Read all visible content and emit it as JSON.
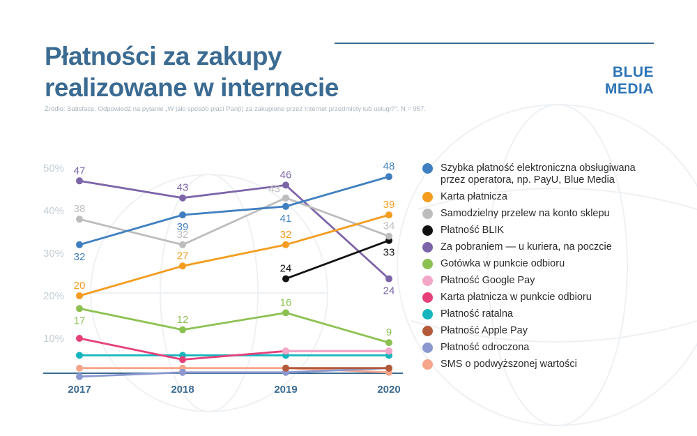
{
  "header": {
    "title_line1": "Płatności za zakupy",
    "title_line2": "realizowane w internecie",
    "brand_line1": "BLUE",
    "brand_line2": "MEDIA",
    "source": "Źródło: Satisface. Odpowiedź na pytanie „W jaki sposób płaci Pan(i) za zakupione przez Internet przedmioty lub usługi?\". N = 957."
  },
  "colors": {
    "title": "#3b6b92",
    "brand": "#2d74b6",
    "axis": "#3b6b92",
    "tick_text": "#c3cdd6"
  },
  "chart_data": {
    "type": "line",
    "x": [
      "2017",
      "2018",
      "2019",
      "2020"
    ],
    "yticks": [
      "10%",
      "20%",
      "30%",
      "40%",
      "50%"
    ],
    "ylim": [
      0,
      50
    ],
    "grid": false,
    "legend_position": "right",
    "series": [
      {
        "name": "Szybka płatność elektroniczna obsługiwana przez operatora, np. PayU, Blue Media",
        "color": "#3f7fc0",
        "values": [
          32,
          39,
          41,
          48
        ],
        "labels": [
          "32",
          "39",
          "41",
          "48"
        ],
        "label_pos": [
          "below",
          "below",
          "below",
          "above"
        ]
      },
      {
        "name": "Karta płatnicza",
        "color": "#f39c1f",
        "values": [
          20,
          27,
          32,
          39
        ],
        "labels": [
          "20",
          "27",
          "32",
          "39"
        ],
        "label_pos": [
          "above",
          "above",
          "above",
          "above"
        ]
      },
      {
        "name": "Samodzielny przelew na konto sklepu",
        "color": "#bdbdbd",
        "values": [
          38,
          32,
          43,
          34
        ],
        "labels": [
          "38",
          "32",
          "43",
          "34"
        ],
        "label_pos": [
          "above",
          "above",
          "left",
          "above"
        ]
      },
      {
        "name": "Płatność BLIK",
        "color": "#111111",
        "values": [
          null,
          null,
          24,
          33
        ],
        "labels": [
          null,
          null,
          "24",
          "33"
        ],
        "label_pos": [
          null,
          null,
          "above",
          "below"
        ]
      },
      {
        "name": "Za pobraniem — u kuriera, na poczcie",
        "color": "#7c64a9",
        "values": [
          47,
          43,
          46,
          24
        ],
        "labels": [
          "47",
          "43",
          "46",
          "24"
        ],
        "label_pos": [
          "above",
          "above",
          "above",
          "below"
        ]
      },
      {
        "name": "Gotówka w punkcie odbioru",
        "color": "#8cc152",
        "values": [
          17,
          12,
          16,
          9
        ],
        "labels": [
          "17",
          "12",
          "16",
          "9"
        ],
        "label_pos": [
          "below",
          "above",
          "above",
          "above"
        ]
      },
      {
        "name": "Płatność Google Pay",
        "color": "#f3a6c8",
        "values": [
          null,
          null,
          7,
          7
        ],
        "labels": [
          null,
          null,
          null,
          null
        ],
        "label_pos": [
          null,
          null,
          null,
          null
        ]
      },
      {
        "name": "Karta płatnicza w punkcie odbioru",
        "color": "#e5407a",
        "values": [
          10,
          5,
          7,
          7
        ],
        "labels": [
          null,
          null,
          null,
          null
        ],
        "label_pos": [
          null,
          null,
          null,
          null
        ]
      },
      {
        "name": "Płatność ratalna",
        "color": "#15b5bd",
        "values": [
          6,
          6,
          6,
          6
        ],
        "labels": [
          null,
          null,
          null,
          null
        ],
        "label_pos": [
          null,
          null,
          null,
          null
        ]
      },
      {
        "name": "Płatność Apple Pay",
        "color": "#b35a3a",
        "values": [
          null,
          null,
          3,
          3
        ],
        "labels": [
          null,
          null,
          null,
          null
        ],
        "label_pos": [
          null,
          null,
          null,
          null
        ]
      },
      {
        "name": "Płatność odroczona",
        "color": "#8a98cf",
        "values": [
          1,
          2,
          2,
          3
        ],
        "labels": [
          null,
          null,
          null,
          null
        ],
        "label_pos": [
          null,
          null,
          null,
          null
        ]
      },
      {
        "name": "SMS o podwyższonej wartości",
        "color": "#f5a58a",
        "values": [
          3,
          3,
          3,
          2
        ],
        "labels": [
          null,
          null,
          null,
          null
        ],
        "label_pos": [
          null,
          null,
          null,
          null
        ]
      }
    ]
  }
}
